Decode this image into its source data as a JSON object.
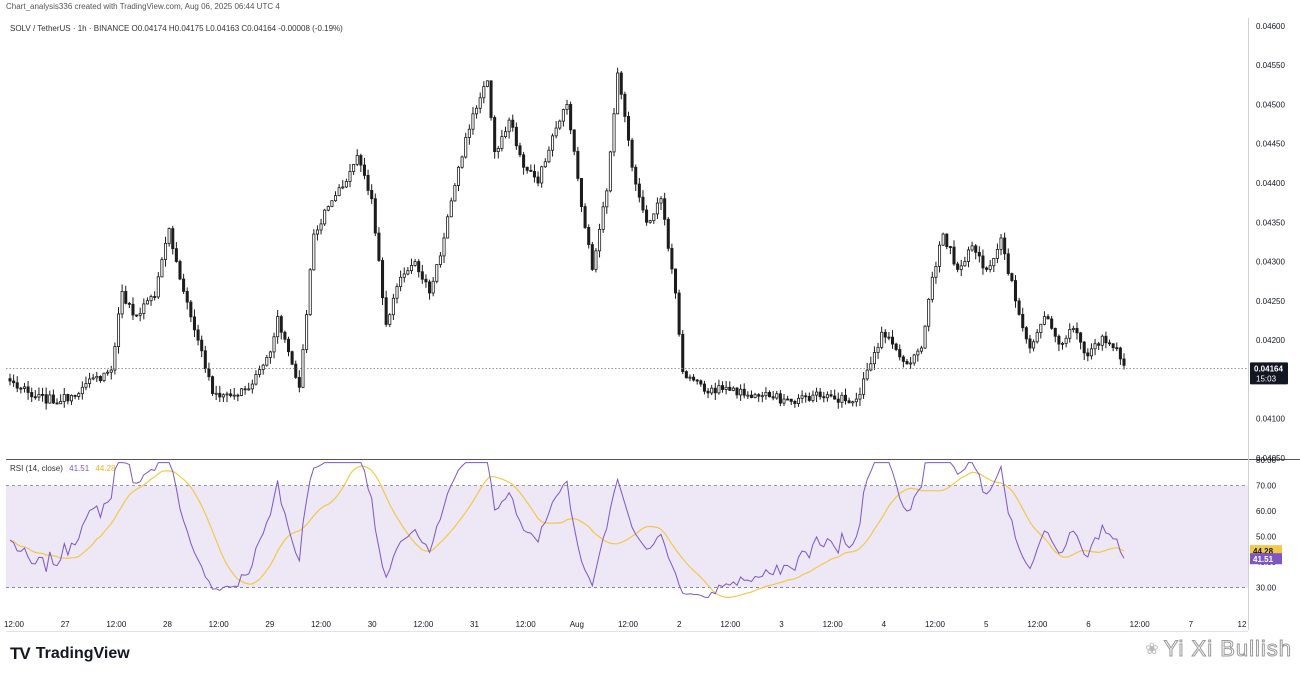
{
  "header": {
    "text": "Chart_analysis336 created with TradingView.com, Aug 06, 2025 06:44 UTC 4"
  },
  "legend": {
    "text": "SOLV / TetherUS · 1h · BINANCE  O0.04174  H0.04175  L0.04163  C0.04164  -0.00008 (-0.19%)"
  },
  "rsi_legend": {
    "label": "RSI (14, close)",
    "value1": "41.51",
    "value2": "44.28"
  },
  "price_badge": {
    "price": "0.04164",
    "countdown": "15:03"
  },
  "rsi_badges": {
    "ma": "44.28",
    "rsi": "41.51"
  },
  "brand": {
    "logo": "TV",
    "text": "TradingView"
  },
  "watermark": {
    "text": "Yi Xi Bullish"
  },
  "colors": {
    "up": "#ffffff",
    "down": "#1c1c1c",
    "wick": "#1c1c1c",
    "rsi": "#7e57c2",
    "rsi_ma": "#f2c84b",
    "rsi_band": "#ede7f6",
    "last_price_line": "#888888"
  },
  "chart_data": [
    {
      "type": "candlestick",
      "title": "SOLV / TetherUS · 1h · BINANCE",
      "y_ticks": [
        "0.04600",
        "0.04550",
        "0.04500",
        "0.04450",
        "0.04400",
        "0.04350",
        "0.04300",
        "0.04250",
        "0.04200",
        "0.04150",
        "0.04100",
        "0.04050"
      ],
      "ylim": [
        0.0405,
        0.0461
      ],
      "last_price": 0.04164,
      "x_ticks": [
        "12:00",
        "27",
        "12:00",
        "28",
        "12:00",
        "29",
        "12:00",
        "30",
        "12:00",
        "31",
        "12:00",
        "Aug",
        "12:00",
        "2",
        "12:00",
        "3",
        "12:00",
        "4",
        "12:00",
        "5",
        "12:00",
        "6",
        "12:00",
        "7",
        "12"
      ],
      "close_anchors": [
        [
          0,
          0.04148
        ],
        [
          6,
          0.04128
        ],
        [
          14,
          0.04122
        ],
        [
          20,
          0.0414
        ],
        [
          28,
          0.04162
        ],
        [
          31,
          0.04262
        ],
        [
          34,
          0.04232
        ],
        [
          40,
          0.04255
        ],
        [
          44,
          0.04342
        ],
        [
          48,
          0.04262
        ],
        [
          52,
          0.042
        ],
        [
          56,
          0.04132
        ],
        [
          62,
          0.0413
        ],
        [
          66,
          0.04138
        ],
        [
          72,
          0.04185
        ],
        [
          74,
          0.0423
        ],
        [
          80,
          0.0414
        ],
        [
          84,
          0.04335
        ],
        [
          88,
          0.0437
        ],
        [
          92,
          0.04395
        ],
        [
          96,
          0.04435
        ],
        [
          100,
          0.0438
        ],
        [
          104,
          0.0422
        ],
        [
          108,
          0.0428
        ],
        [
          112,
          0.043
        ],
        [
          116,
          0.0426
        ],
        [
          120,
          0.0433
        ],
        [
          124,
          0.0442
        ],
        [
          128,
          0.04488
        ],
        [
          132,
          0.0453
        ],
        [
          134,
          0.0444
        ],
        [
          138,
          0.0448
        ],
        [
          142,
          0.0442
        ],
        [
          146,
          0.044
        ],
        [
          150,
          0.0446
        ],
        [
          154,
          0.045
        ],
        [
          158,
          0.0437
        ],
        [
          161,
          0.0429
        ],
        [
          165,
          0.0439
        ],
        [
          168,
          0.0454
        ],
        [
          172,
          0.0442
        ],
        [
          176,
          0.0435
        ],
        [
          180,
          0.0438
        ],
        [
          184,
          0.0426
        ],
        [
          186,
          0.0416
        ],
        [
          192,
          0.04135
        ],
        [
          198,
          0.0414
        ],
        [
          204,
          0.0413
        ],
        [
          210,
          0.04128
        ],
        [
          216,
          0.04122
        ],
        [
          222,
          0.0413
        ],
        [
          228,
          0.04125
        ],
        [
          234,
          0.04125
        ],
        [
          238,
          0.0417
        ],
        [
          241,
          0.0421
        ],
        [
          244,
          0.04195
        ],
        [
          248,
          0.0417
        ],
        [
          252,
          0.0419
        ],
        [
          255,
          0.0428
        ],
        [
          258,
          0.04335
        ],
        [
          262,
          0.0429
        ],
        [
          266,
          0.0432
        ],
        [
          270,
          0.0429
        ],
        [
          274,
          0.0433
        ],
        [
          278,
          0.0425
        ],
        [
          282,
          0.0419
        ],
        [
          286,
          0.0423
        ],
        [
          290,
          0.04195
        ],
        [
          294,
          0.04215
        ],
        [
          298,
          0.0418
        ],
        [
          302,
          0.04205
        ],
        [
          306,
          0.0419
        ],
        [
          308,
          0.04168
        ]
      ]
    },
    {
      "type": "line",
      "title": "RSI (14, close)",
      "y_ticks": [
        "80.00",
        "70.00",
        "60.00",
        "50.00",
        "40.00",
        "30.00"
      ],
      "ylim": [
        22,
        80
      ],
      "band": [
        30,
        70
      ],
      "series": [
        {
          "name": "RSI",
          "color": "#7e57c2",
          "last": 41.51
        },
        {
          "name": "RSI MA",
          "color": "#f2c84b",
          "last": 44.28
        }
      ]
    }
  ]
}
